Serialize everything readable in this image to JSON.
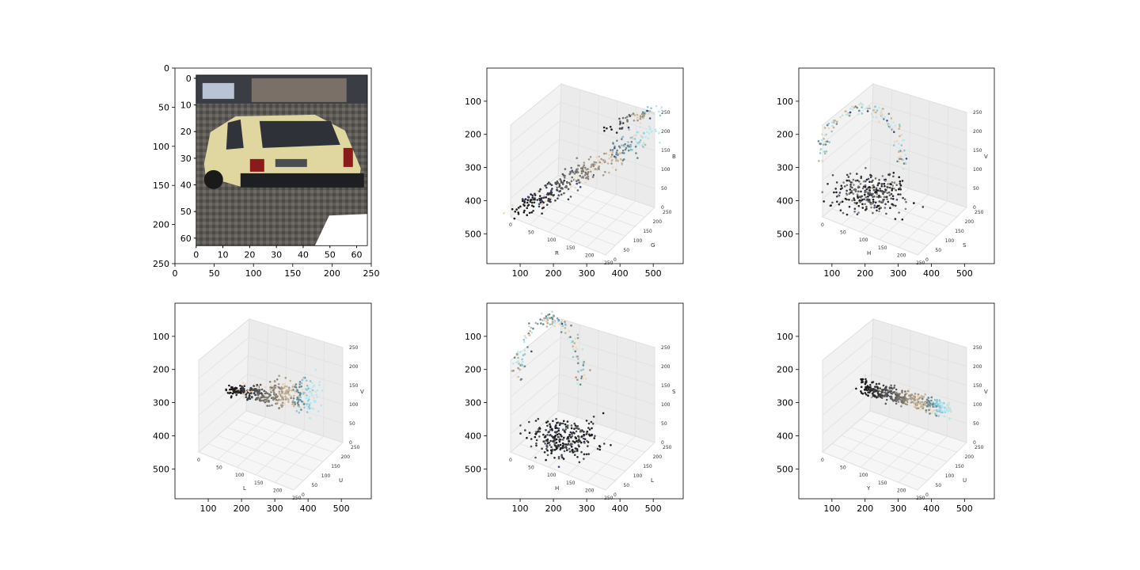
{
  "figure": {
    "background": "#ffffff",
    "axis_color": "#000000",
    "pane_color": "#f2f2f2",
    "grid_color": "#e0e0e0"
  },
  "chart_data": [
    {
      "type": "image",
      "panel": "car-image",
      "xlim": [
        0,
        250
      ],
      "ylim": [
        250,
        0
      ],
      "xticks": [
        0,
        50,
        100,
        150,
        200,
        250
      ],
      "yticks": [
        0,
        50,
        100,
        150,
        200,
        250
      ],
      "inner_xticks": [
        0,
        10,
        20,
        30,
        40,
        50,
        60
      ],
      "inner_yticks": [
        0,
        10,
        20,
        30,
        40,
        50,
        60
      ]
    },
    {
      "type": "scatter3d",
      "panel": "rgb",
      "xlim": [
        0,
        590
      ],
      "ylim": [
        590,
        0
      ],
      "xticks": [
        100,
        200,
        300,
        400,
        500
      ],
      "yticks": [
        100,
        200,
        300,
        400,
        500
      ],
      "axis_labels": {
        "a": "R",
        "b": "G",
        "c": "B"
      },
      "axis_ticks": [
        0,
        50,
        100,
        150,
        200,
        250
      ],
      "shape": "diagonal"
    },
    {
      "type": "scatter3d",
      "panel": "hsv",
      "xlim": [
        0,
        590
      ],
      "ylim": [
        590,
        0
      ],
      "xticks": [
        100,
        200,
        300,
        400,
        500
      ],
      "yticks": [
        100,
        200,
        300,
        400,
        500
      ],
      "axis_labels": {
        "a": "H",
        "b": "S",
        "c": "V"
      },
      "axis_ticks": [
        0,
        50,
        100,
        150,
        200,
        250
      ],
      "shape": "cluster-arc"
    },
    {
      "type": "scatter3d",
      "panel": "luv",
      "xlim": [
        0,
        590
      ],
      "ylim": [
        590,
        0
      ],
      "xticks": [
        100,
        200,
        300,
        400,
        500
      ],
      "yticks": [
        100,
        200,
        300,
        400,
        500
      ],
      "axis_labels": {
        "a": "L",
        "b": "U",
        "c": "V"
      },
      "axis_ticks": [
        0,
        50,
        100,
        150,
        200,
        250
      ],
      "shape": "horizontal-fan"
    },
    {
      "type": "scatter3d",
      "panel": "hls",
      "xlim": [
        0,
        590
      ],
      "ylim": [
        590,
        0
      ],
      "xticks": [
        100,
        200,
        300,
        400,
        500
      ],
      "yticks": [
        100,
        200,
        300,
        400,
        500
      ],
      "axis_labels": {
        "a": "H",
        "b": "L",
        "c": "S"
      },
      "axis_ticks": [
        0,
        50,
        100,
        150,
        200,
        250
      ],
      "shape": "cluster-arc-dark"
    },
    {
      "type": "scatter3d",
      "panel": "yuv",
      "xlim": [
        0,
        590
      ],
      "ylim": [
        590,
        0
      ],
      "xticks": [
        100,
        200,
        300,
        400,
        500
      ],
      "yticks": [
        100,
        200,
        300,
        400,
        500
      ],
      "axis_labels": {
        "a": "Y",
        "b": "U",
        "c": "V"
      },
      "axis_ticks": [
        0,
        50,
        100,
        150,
        200,
        250
      ],
      "shape": "diagonal-band"
    }
  ]
}
